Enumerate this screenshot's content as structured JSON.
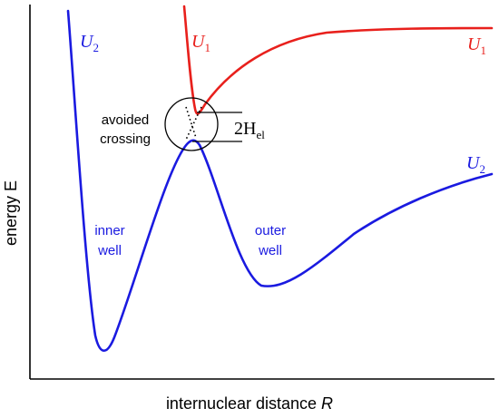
{
  "colors": {
    "U1": "#e8201c",
    "U2": "#1a1ae0",
    "axes": "#000000",
    "annotation": "#000000"
  },
  "axes": {
    "ylabel": "energy E",
    "xlabel_text": "internuclear distance ",
    "xlabel_symbol": "R"
  },
  "curves": {
    "U1": {
      "symbol": "U",
      "subscript": "1"
    },
    "U2": {
      "symbol": "U",
      "subscript": "2"
    }
  },
  "annotations": {
    "avoided_crossing_line1": "avoided",
    "avoided_crossing_line2": "crossing",
    "gap_prefix": "2H",
    "gap_subscript": "el",
    "inner_well_line1": "inner",
    "inner_well_line2": "well",
    "outer_well_line1": "outer",
    "outer_well_line2": "well"
  }
}
